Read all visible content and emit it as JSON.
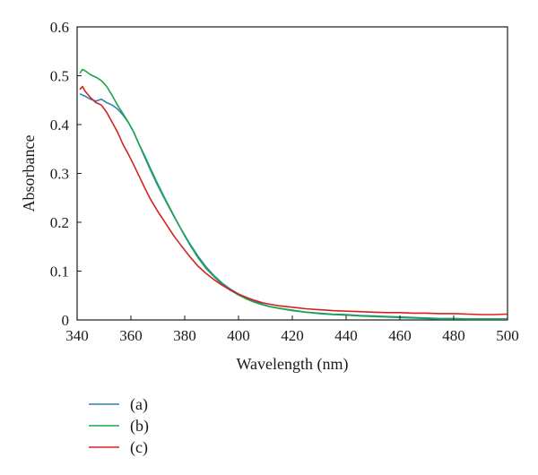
{
  "chart_data": {
    "type": "line",
    "xlabel": "Wavelength (nm)",
    "ylabel": "Absorbance",
    "xlim": [
      340,
      500
    ],
    "ylim": [
      0,
      0.6
    ],
    "x_ticks": [
      340,
      360,
      380,
      400,
      420,
      440,
      460,
      480,
      500
    ],
    "x_tick_labels": [
      "340",
      "360",
      "380",
      "400",
      "420",
      "440",
      "460",
      "480",
      "500"
    ],
    "y_ticks": [
      0,
      0.1,
      0.2,
      0.3,
      0.4,
      0.5,
      0.6
    ],
    "y_tick_labels": [
      "0",
      "0.1",
      "0.2",
      "0.3",
      "0.4",
      "0.5",
      "0.6"
    ],
    "grid": false,
    "legend_position": "bottom-left, below plot",
    "series": [
      {
        "name": "(a)",
        "color": "#2f7fb6",
        "x": [
          341,
          343,
          345,
          347,
          349,
          351,
          353,
          355,
          357,
          359,
          361,
          363,
          365,
          367,
          370,
          373,
          376,
          379,
          382,
          385,
          388,
          391,
          394,
          397,
          400,
          403,
          406,
          409,
          412,
          415,
          420,
          425,
          430,
          435,
          440,
          445,
          450,
          455,
          460,
          465,
          470,
          475,
          480,
          485,
          490,
          495,
          500
        ],
        "y": [
          0.463,
          0.458,
          0.452,
          0.448,
          0.452,
          0.445,
          0.44,
          0.432,
          0.42,
          0.405,
          0.385,
          0.36,
          0.335,
          0.31,
          0.275,
          0.243,
          0.212,
          0.183,
          0.155,
          0.13,
          0.108,
          0.09,
          0.075,
          0.063,
          0.053,
          0.045,
          0.038,
          0.032,
          0.027,
          0.024,
          0.019,
          0.016,
          0.014,
          0.012,
          0.011,
          0.009,
          0.008,
          0.007,
          0.006,
          0.005,
          0.004,
          0.003,
          0.003,
          0.002,
          0.002,
          0.002,
          0.002
        ]
      },
      {
        "name": "(b)",
        "color": "#1aa64a",
        "x": [
          341,
          342,
          343,
          345,
          347,
          349,
          351,
          353,
          355,
          357,
          359,
          361,
          363,
          365,
          367,
          370,
          373,
          376,
          379,
          382,
          385,
          388,
          391,
          394,
          397,
          400,
          403,
          406,
          409,
          412,
          415,
          420,
          425,
          430,
          435,
          440,
          445,
          450,
          455,
          460,
          465,
          470,
          475,
          480,
          485,
          490,
          495,
          500
        ],
        "y": [
          0.505,
          0.513,
          0.51,
          0.502,
          0.497,
          0.49,
          0.478,
          0.46,
          0.44,
          0.423,
          0.405,
          0.385,
          0.36,
          0.338,
          0.313,
          0.278,
          0.245,
          0.213,
          0.182,
          0.153,
          0.127,
          0.105,
          0.088,
          0.073,
          0.061,
          0.051,
          0.043,
          0.036,
          0.031,
          0.027,
          0.024,
          0.02,
          0.016,
          0.013,
          0.011,
          0.01,
          0.008,
          0.007,
          0.006,
          0.005,
          0.004,
          0.003,
          0.002,
          0.002,
          0.002,
          0.002,
          0.002,
          0.002
        ]
      },
      {
        "name": "(c)",
        "color": "#d62020",
        "x": [
          341,
          342,
          343,
          345,
          347,
          349,
          351,
          353,
          355,
          357,
          359,
          361,
          363,
          365,
          367,
          370,
          373,
          376,
          379,
          382,
          385,
          388,
          391,
          394,
          397,
          400,
          403,
          406,
          409,
          412,
          415,
          420,
          425,
          430,
          435,
          440,
          445,
          450,
          455,
          460,
          465,
          470,
          475,
          480,
          485,
          490,
          495,
          500
        ],
        "y": [
          0.472,
          0.478,
          0.468,
          0.455,
          0.445,
          0.44,
          0.425,
          0.405,
          0.385,
          0.36,
          0.34,
          0.318,
          0.295,
          0.272,
          0.25,
          0.222,
          0.197,
          0.172,
          0.15,
          0.129,
          0.11,
          0.095,
          0.082,
          0.071,
          0.061,
          0.053,
          0.046,
          0.04,
          0.035,
          0.032,
          0.029,
          0.026,
          0.023,
          0.021,
          0.019,
          0.018,
          0.017,
          0.016,
          0.015,
          0.015,
          0.014,
          0.014,
          0.013,
          0.013,
          0.012,
          0.011,
          0.011,
          0.012
        ]
      }
    ]
  }
}
